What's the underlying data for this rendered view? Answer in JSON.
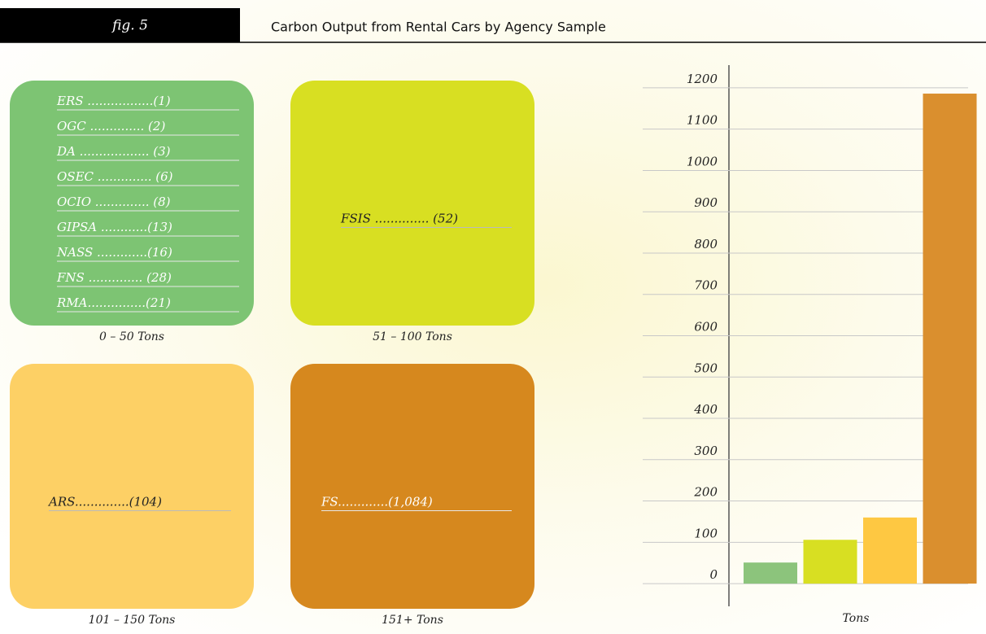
{
  "header": {
    "fig": "fig. 5",
    "title": "Carbon Output from Rental Cars by Agency Sample"
  },
  "groups": [
    {
      "entries": [
        "ERS .................(1)",
        "OGC .............. (2)",
        "DA .................. (3)",
        "OSEC .............. (6)",
        "OCIO .............. (8)",
        "GIPSA ............(13)",
        "NASS .............(16)",
        "FNS .............. (28)",
        "RMA...............(21)"
      ],
      "label": "0 – 50 Tons",
      "color": "#7dc473"
    },
    {
      "entries": [
        "FSIS .............. (52)"
      ],
      "label": "51 – 100 Tons",
      "color": "#d8df22"
    },
    {
      "entries": [
        "ARS..............(104)"
      ],
      "label": "101 – 150 Tons",
      "color": "#fdd065"
    },
    {
      "entries": [
        "FS.............(1,084)"
      ],
      "label": "151+ Tons",
      "color": "#d6881e"
    }
  ],
  "chart_data": {
    "type": "bar",
    "categories": [
      null,
      null,
      null,
      null
    ],
    "values": [
      51,
      106,
      160,
      1186
    ],
    "colors": [
      "#8cc47c",
      "#d8df22",
      "#fec842",
      "#da8f2e"
    ],
    "x_label": "Tons",
    "ylim": [
      -55,
      1255
    ],
    "yticks": [
      0,
      100,
      200,
      300,
      400,
      500,
      600,
      700,
      800,
      900,
      1000,
      1100,
      1200
    ],
    "grid": true
  }
}
